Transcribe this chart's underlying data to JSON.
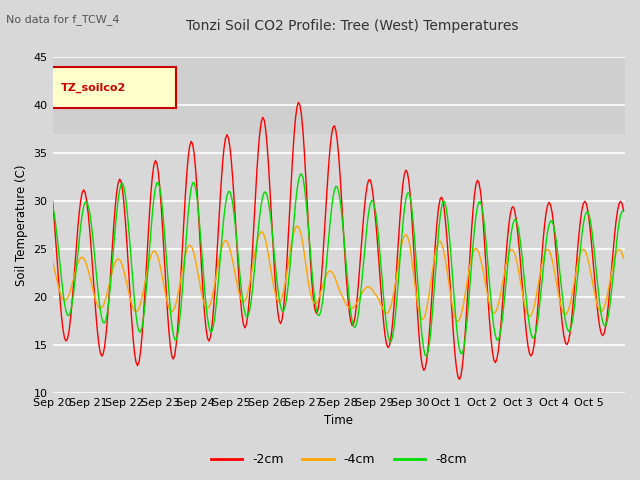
{
  "title": "Tonzi Soil CO2 Profile: Tree (West) Temperatures",
  "subtitle": "No data for f_TCW_4",
  "ylabel": "Soil Temperature (C)",
  "xlabel": "Time",
  "ylim": [
    10,
    45
  ],
  "legend_label": "TZ_soilco2",
  "line_labels": [
    "-2cm",
    "-4cm",
    "-8cm"
  ],
  "line_colors": [
    "#ff0000",
    "#ffa500",
    "#00dd00"
  ],
  "fig_facecolor": "#d8d8d8",
  "plot_bg_color": "#d8d8d8",
  "upper_bg_color": "#c0c0c0",
  "tick_dates": [
    "Sep 20",
    "Sep 21",
    "Sep 22",
    "Sep 23",
    "Sep 24",
    "Sep 25",
    "Sep 26",
    "Sep 27",
    "Sep 28",
    "Sep 29",
    "Sep 30",
    "Oct 1",
    "Oct 2",
    "Oct 3",
    "Oct 4",
    "Oct 5"
  ]
}
